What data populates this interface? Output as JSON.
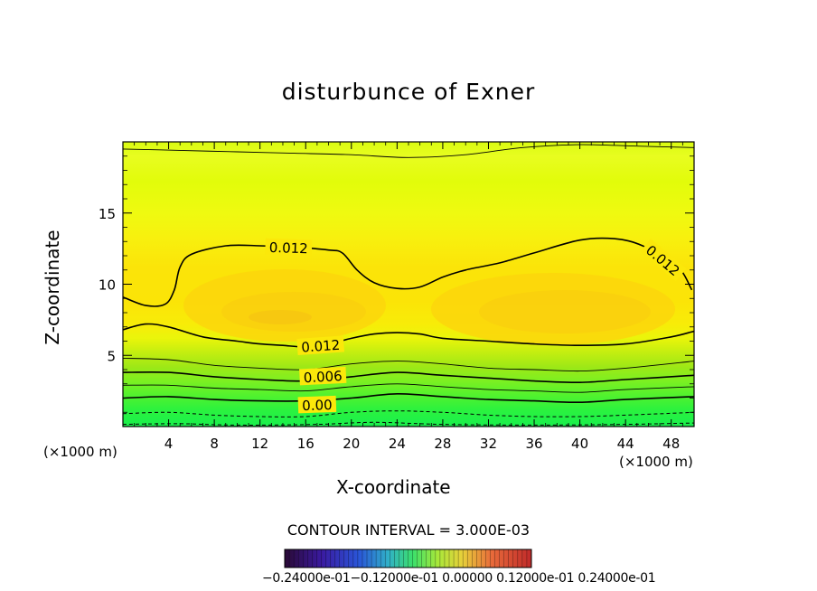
{
  "chart_data": {
    "type": "heatmap",
    "title": "disturbunce of Exner",
    "xlabel": "X-coordinate",
    "ylabel": "Z-coordinate",
    "x_unit_left": "(×1000 m)",
    "x_unit_right": "(×1000 m)",
    "xlim": [
      0,
      50
    ],
    "ylim": [
      0,
      20
    ],
    "x_ticks": [
      "4",
      "8",
      "12",
      "16",
      "20",
      "24",
      "28",
      "32",
      "36",
      "40",
      "44",
      "48"
    ],
    "y_ticks": [
      "5",
      "10",
      "15"
    ],
    "contour_interval_text": "CONTOUR INTERVAL = 3.000E-03",
    "colorbar_tick_labels": "−0.24000e-01−0.12000e-01 0.00000 0.12000e-01 0.24000e-01",
    "colorbar_range": [
      -0.024,
      0.024
    ],
    "contours": [
      {
        "level": "0.012",
        "kind": "upper",
        "points": [
          [
            0,
            9.1
          ],
          [
            2,
            8.5
          ],
          [
            3.7,
            8.6
          ],
          [
            4.5,
            9.6
          ],
          [
            5,
            11.2
          ],
          [
            6,
            12.1
          ],
          [
            9,
            12.7
          ],
          [
            12,
            12.7
          ],
          [
            15,
            12.6
          ],
          [
            18,
            12.4
          ],
          [
            19.2,
            12.2
          ],
          [
            20.5,
            11
          ],
          [
            22,
            10.1
          ],
          [
            24,
            9.7
          ],
          [
            26,
            9.8
          ],
          [
            28,
            10.5
          ],
          [
            30,
            11
          ],
          [
            33,
            11.5
          ],
          [
            36,
            12.2
          ],
          [
            40,
            13.1
          ],
          [
            43,
            13.2
          ],
          [
            45.5,
            12.7
          ],
          [
            48.5,
            11.3
          ],
          [
            49.8,
            9.6
          ]
        ]
      },
      {
        "level": "0.012",
        "kind": "lower",
        "points": [
          [
            0,
            6.8
          ],
          [
            2,
            7.2
          ],
          [
            4,
            7
          ],
          [
            7,
            6.3
          ],
          [
            10,
            6
          ],
          [
            12,
            5.8
          ],
          [
            14,
            5.7
          ],
          [
            16,
            5.6
          ],
          [
            18,
            5.8
          ],
          [
            20,
            6.2
          ],
          [
            22,
            6.5
          ],
          [
            24,
            6.6
          ],
          [
            26,
            6.5
          ],
          [
            28,
            6.2
          ],
          [
            32,
            6
          ],
          [
            36,
            5.8
          ],
          [
            40,
            5.7
          ],
          [
            44,
            5.8
          ],
          [
            48,
            6.3
          ],
          [
            50,
            6.7
          ]
        ]
      },
      {
        "level": "0.009",
        "kind": "thin",
        "points": [
          [
            0,
            4.8
          ],
          [
            4,
            4.7
          ],
          [
            8,
            4.3
          ],
          [
            12,
            4.1
          ],
          [
            16,
            4.0
          ],
          [
            20,
            4.4
          ],
          [
            24,
            4.6
          ],
          [
            28,
            4.4
          ],
          [
            32,
            4.1
          ],
          [
            36,
            4.0
          ],
          [
            40,
            3.9
          ],
          [
            44,
            4.1
          ],
          [
            50,
            4.6
          ]
        ]
      },
      {
        "level": "0.006",
        "kind": "bold",
        "points": [
          [
            0,
            3.8
          ],
          [
            4,
            3.8
          ],
          [
            8,
            3.5
          ],
          [
            12,
            3.3
          ],
          [
            16,
            3.2
          ],
          [
            20,
            3.5
          ],
          [
            24,
            3.8
          ],
          [
            28,
            3.6
          ],
          [
            32,
            3.4
          ],
          [
            36,
            3.2
          ],
          [
            40,
            3.1
          ],
          [
            44,
            3.3
          ],
          [
            50,
            3.6
          ]
        ]
      },
      {
        "level": "0.003",
        "kind": "thin",
        "points": [
          [
            0,
            2.9
          ],
          [
            4,
            2.9
          ],
          [
            8,
            2.7
          ],
          [
            12,
            2.6
          ],
          [
            16,
            2.5
          ],
          [
            20,
            2.8
          ],
          [
            24,
            3.0
          ],
          [
            28,
            2.8
          ],
          [
            32,
            2.6
          ],
          [
            36,
            2.5
          ],
          [
            40,
            2.4
          ],
          [
            44,
            2.6
          ],
          [
            50,
            2.8
          ]
        ]
      },
      {
        "level": "0.00",
        "kind": "bold",
        "points": [
          [
            0,
            2.0
          ],
          [
            4,
            2.1
          ],
          [
            8,
            1.9
          ],
          [
            12,
            1.8
          ],
          [
            16,
            1.8
          ],
          [
            20,
            2.0
          ],
          [
            24,
            2.3
          ],
          [
            28,
            2.1
          ],
          [
            32,
            1.9
          ],
          [
            36,
            1.8
          ],
          [
            40,
            1.7
          ],
          [
            44,
            1.9
          ],
          [
            50,
            2.1
          ]
        ]
      },
      {
        "level": "-0.003",
        "kind": "dashed",
        "points": [
          [
            0,
            0.9
          ],
          [
            4,
            1.0
          ],
          [
            8,
            0.8
          ],
          [
            12,
            0.7
          ],
          [
            16,
            0.7
          ],
          [
            20,
            1.0
          ],
          [
            24,
            1.1
          ],
          [
            28,
            1.0
          ],
          [
            32,
            0.8
          ],
          [
            36,
            0.7
          ],
          [
            40,
            0.7
          ],
          [
            44,
            0.8
          ],
          [
            50,
            1.0
          ]
        ]
      },
      {
        "level": "-0.006",
        "kind": "dashed",
        "points": [
          [
            0,
            0.15
          ],
          [
            5,
            0.2
          ],
          [
            10,
            0.1
          ],
          [
            17,
            0.15
          ],
          [
            22,
            0.3
          ],
          [
            28,
            0.15
          ],
          [
            36,
            0.1
          ],
          [
            44,
            0.15
          ],
          [
            50,
            0.25
          ]
        ]
      },
      {
        "level": "top",
        "kind": "thin",
        "points": [
          [
            0,
            19.5
          ],
          [
            5,
            19.4
          ],
          [
            10,
            19.3
          ],
          [
            15,
            19.2
          ],
          [
            20,
            19.1
          ],
          [
            25,
            18.9
          ],
          [
            30,
            19.1
          ],
          [
            35,
            19.6
          ],
          [
            40,
            19.8
          ],
          [
            45,
            19.7
          ],
          [
            50,
            19.6
          ]
        ]
      }
    ],
    "contour_labels": [
      {
        "text": "0.012",
        "x": 14.5,
        "z": 12.6,
        "angle": 2
      },
      {
        "text": "0.012",
        "x": 17.3,
        "z": 5.7,
        "angle": -4
      },
      {
        "text": "0.012",
        "x": 47.3,
        "z": 11.7,
        "angle": 40
      },
      {
        "text": "0.006",
        "x": 17.5,
        "z": 3.55,
        "angle": -3
      },
      {
        "text": "0.00",
        "x": 17.0,
        "z": 1.55,
        "angle": -2
      }
    ]
  }
}
